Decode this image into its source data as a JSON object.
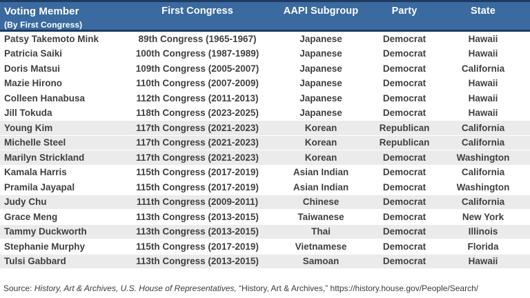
{
  "colors": {
    "header_bg": "#3A6A9F",
    "header_border": "#1E3A60",
    "header_text": "#FFFFFF",
    "row_shaded": "#EBEBEB",
    "row_plain": "#FFFFFF",
    "body_text": "#3F3F3F"
  },
  "chart_data": {
    "type": "table",
    "title": "",
    "columns": [
      "Voting Member",
      "First Congress",
      "AAPI Subgroup",
      "Party",
      "State"
    ],
    "header_note": "(By First Congress)",
    "rows": [
      {
        "name": "Patsy Takemoto Mink",
        "congress": "89th Congress (1965-1967)",
        "subgroup": "Japanese",
        "party": "Democrat",
        "state": "Hawaii",
        "shaded": false
      },
      {
        "name": "Patricia Saiki",
        "congress": "100th Congress (1987-1989)",
        "subgroup": "Japanese",
        "party": "Democrat",
        "state": "Hawaii",
        "shaded": false
      },
      {
        "name": "Doris Matsui",
        "congress": "109th Congress (2005-2007)",
        "subgroup": "Japanese",
        "party": "Democrat",
        "state": "California",
        "shaded": false
      },
      {
        "name": "Mazie Hirono",
        "congress": "110th Congress (2007-2009)",
        "subgroup": "Japanese",
        "party": "Democrat",
        "state": "Hawaii",
        "shaded": false
      },
      {
        "name": "Colleen Hanabusa",
        "congress": "112th Congress (2011-2013)",
        "subgroup": "Japanese",
        "party": "Democrat",
        "state": "Hawaii",
        "shaded": false
      },
      {
        "name": "Jill Tokuda",
        "congress": "118th Congress (2023-2025)",
        "subgroup": "Japanese",
        "party": "Democrat",
        "state": "Hawaii",
        "shaded": false
      },
      {
        "name": "Young Kim",
        "congress": "117th Congress (2021-2023)",
        "subgroup": "Korean",
        "party": "Republican",
        "state": "California",
        "shaded": true
      },
      {
        "name": "Michelle Steel",
        "congress": "117th Congress (2021-2023)",
        "subgroup": "Korean",
        "party": "Republican",
        "state": "California",
        "shaded": true
      },
      {
        "name": "Marilyn Strickland",
        "congress": "117th Congress (2021-2023)",
        "subgroup": "Korean",
        "party": "Democrat",
        "state": "Washington",
        "shaded": true
      },
      {
        "name": "Kamala Harris",
        "congress": "115th Congress (2017-2019)",
        "subgroup": "Asian Indian",
        "party": "Democrat",
        "state": "California",
        "shaded": false
      },
      {
        "name": "Pramila Jayapal",
        "congress": "115th Congress (2017-2019)",
        "subgroup": "Asian Indian",
        "party": "Democrat",
        "state": "Washington",
        "shaded": false
      },
      {
        "name": "Judy Chu",
        "congress": "111th Congress (2009-2011)",
        "subgroup": "Chinese",
        "party": "Democrat",
        "state": "California",
        "shaded": true
      },
      {
        "name": "Grace Meng",
        "congress": "113th Congress (2013-2015)",
        "subgroup": "Taiwanese",
        "party": "Democrat",
        "state": "New York",
        "shaded": false
      },
      {
        "name": "Tammy Duckworth",
        "congress": "113th Congress (2013-2015)",
        "subgroup": "Thai",
        "party": "Democrat",
        "state": "Illinois",
        "shaded": true
      },
      {
        "name": "Stephanie Murphy",
        "congress": "115th Congress (2017-2019)",
        "subgroup": "Vietnamese",
        "party": "Democrat",
        "state": "Florida",
        "shaded": false
      },
      {
        "name": "Tulsi Gabbard",
        "congress": "113th Congress (2013-2015)",
        "subgroup": "Samoan",
        "party": "Democrat",
        "state": "Hawaii",
        "shaded": true
      }
    ]
  },
  "footer": {
    "prefix": "Source:",
    "italic": "History, Art & Archives, U.S. House of Representatives,",
    "quoted": "“History, Art & Archives,”",
    "url": "https://history.house.gov/People/Search/"
  }
}
